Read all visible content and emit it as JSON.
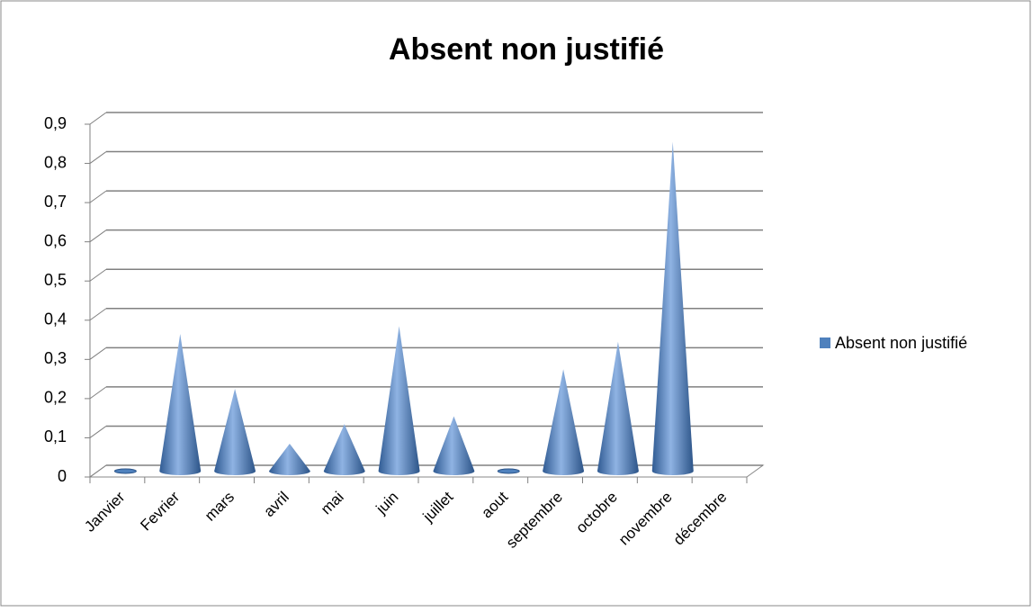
{
  "chart_data": {
    "type": "cone3d",
    "title": "Absent non justifié",
    "categories": [
      "Janvier",
      "Fevrier",
      "mars",
      "avril",
      "mai",
      "juin",
      "juillet",
      "aout",
      "septembre",
      "octobre",
      "novembre",
      "décembre"
    ],
    "series": [
      {
        "name": "Absent non justifié",
        "color": "#4f81bd",
        "values": [
          0,
          0.35,
          0.21,
          0.07,
          0.12,
          0.37,
          0.14,
          0,
          0.26,
          0.33,
          0.84,
          null
        ]
      }
    ],
    "ylim": [
      0,
      0.9
    ],
    "yticks": [
      0,
      {
        "value": 0.1,
        "label": "0,1"
      },
      {
        "value": 0.2,
        "label": "0,2"
      },
      {
        "value": 0.3,
        "label": "0,3"
      },
      {
        "value": 0.4,
        "label": "0,4"
      },
      {
        "value": 0.5,
        "label": "0,5"
      },
      {
        "value": 0.6,
        "label": "0,6"
      },
      {
        "value": 0.7,
        "label": "0,7"
      },
      {
        "value": 0.8,
        "label": "0,8"
      },
      {
        "value": 0.9,
        "label": "0,9"
      }
    ],
    "grid": true,
    "legend": "right"
  }
}
